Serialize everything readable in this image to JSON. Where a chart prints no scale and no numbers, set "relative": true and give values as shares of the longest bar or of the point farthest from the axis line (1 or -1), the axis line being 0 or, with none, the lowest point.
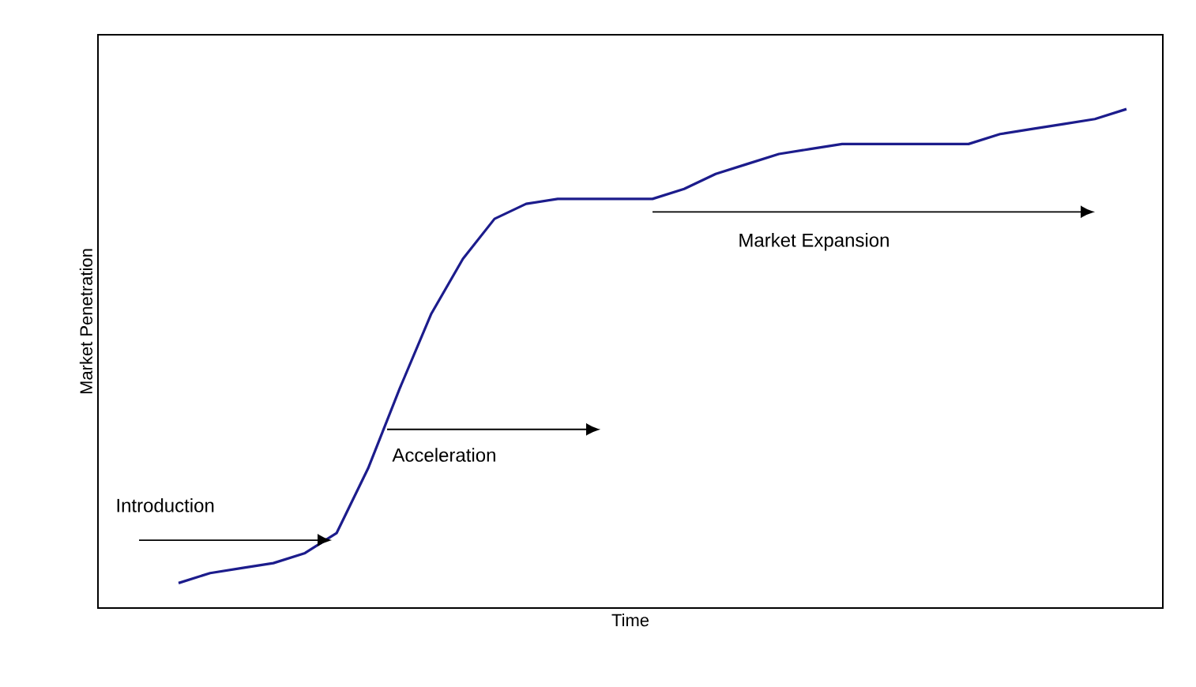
{
  "chart_data": {
    "type": "line",
    "relative": true,
    "xlabel": "Time",
    "ylabel": "Market Penetration",
    "categories": [
      null,
      null,
      null,
      null,
      null,
      null,
      null,
      null,
      null,
      null,
      null,
      null,
      null,
      null,
      null,
      null,
      null,
      null,
      null,
      null,
      null,
      null,
      null,
      null,
      null,
      null,
      null,
      null,
      null,
      null,
      null
    ],
    "series": [
      {
        "color": "#1c1c8c",
        "values": [
          0.05,
          0.07,
          0.08,
          0.09,
          0.11,
          0.15,
          0.28,
          0.44,
          0.59,
          0.7,
          0.78,
          0.81,
          0.82,
          0.82,
          0.82,
          0.82,
          0.84,
          0.87,
          0.89,
          0.91,
          0.92,
          0.93,
          0.93,
          0.93,
          0.93,
          0.93,
          0.95,
          0.96,
          0.97,
          0.98,
          1.0
        ]
      }
    ],
    "annotations": [
      "Introduction",
      "Acceleration",
      "Market Expansion"
    ],
    "tick_labels": false
  }
}
